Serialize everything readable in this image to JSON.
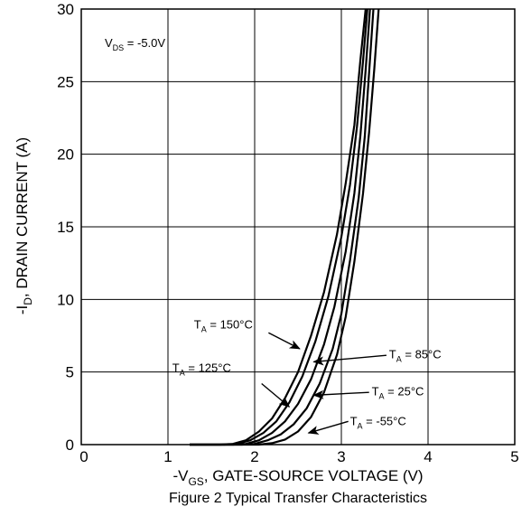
{
  "chart_data": {
    "type": "line",
    "title": "Figure 2 Typical Transfer Characteristics",
    "xlabel": {
      "main": "-V",
      "sub": "GS",
      "rest": ", GATE-SOURCE VOLTAGE (V)"
    },
    "ylabel": {
      "main": "-I",
      "sub": "D",
      "rest": ", DRAIN CURRENT (A)"
    },
    "xlim": [
      0,
      5
    ],
    "ylim": [
      0,
      30
    ],
    "x_ticks": [
      "0",
      "1",
      "2",
      "3",
      "4",
      "5"
    ],
    "y_ticks": [
      "0",
      "5",
      "10",
      "15",
      "20",
      "25",
      "30"
    ],
    "grid": true,
    "condition": {
      "main": "V",
      "sub": "DS",
      "rest": " = -5.0V"
    },
    "series": [
      {
        "name": "T_A = 150°C",
        "label": {
          "main": "T",
          "sub": "A",
          "rest": " = 150°C"
        },
        "x": [
          1.25,
          1.6,
          1.75,
          1.9,
          2.05,
          2.2,
          2.35,
          2.5,
          2.65,
          2.8,
          2.95,
          3.05,
          3.15,
          3.22,
          3.28
        ],
        "y": [
          0,
          0,
          0.05,
          0.3,
          0.9,
          1.8,
          3.2,
          5.0,
          7.5,
          10.5,
          14.5,
          18.0,
          22.0,
          26.5,
          30.0
        ]
      },
      {
        "name": "T_A = 125°C",
        "label": {
          "main": "T",
          "sub": "A",
          "rest": " = 125°C"
        },
        "x": [
          1.25,
          1.65,
          1.8,
          1.95,
          2.1,
          2.25,
          2.4,
          2.55,
          2.7,
          2.85,
          3.0,
          3.1,
          3.18,
          3.25,
          3.3
        ],
        "y": [
          0,
          0,
          0.05,
          0.3,
          0.8,
          1.6,
          2.9,
          4.7,
          7.1,
          10.2,
          14.3,
          17.9,
          21.9,
          26.4,
          30.0
        ]
      },
      {
        "name": "T_A = 85°C",
        "label": {
          "main": "T",
          "sub": "A",
          "rest": " = 85°C"
        },
        "x": [
          1.25,
          1.75,
          1.9,
          2.05,
          2.2,
          2.35,
          2.5,
          2.65,
          2.8,
          2.92,
          3.05,
          3.15,
          3.22,
          3.28,
          3.33
        ],
        "y": [
          0,
          0,
          0.05,
          0.3,
          0.8,
          1.6,
          2.8,
          4.5,
          6.9,
          9.5,
          13.3,
          17.3,
          21.3,
          25.8,
          30.0
        ]
      },
      {
        "name": "T_A = 25°C",
        "label": {
          "main": "T",
          "sub": "A",
          "rest": " = 25°C"
        },
        "x": [
          1.25,
          1.85,
          2.0,
          2.15,
          2.3,
          2.45,
          2.6,
          2.75,
          2.9,
          3.0,
          3.1,
          3.2,
          3.27,
          3.32,
          3.37
        ],
        "y": [
          0,
          0,
          0.05,
          0.3,
          0.7,
          1.4,
          2.5,
          4.2,
          6.6,
          9.0,
          12.7,
          17.0,
          21.2,
          25.6,
          30.0
        ]
      },
      {
        "name": "T_A = -55°C",
        "label": {
          "main": "T",
          "sub": "A",
          "rest": " = -55°C"
        },
        "x": [
          1.25,
          2.05,
          2.2,
          2.35,
          2.5,
          2.65,
          2.8,
          2.95,
          3.05,
          3.15,
          3.25,
          3.32,
          3.38,
          3.43
        ],
        "y": [
          0,
          0,
          0.1,
          0.35,
          0.9,
          1.9,
          3.6,
          6.2,
          8.8,
          12.6,
          17.3,
          21.5,
          25.9,
          30.0
        ]
      }
    ]
  }
}
